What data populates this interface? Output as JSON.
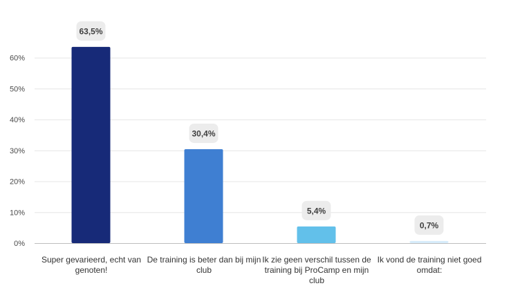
{
  "chart_data": {
    "type": "bar",
    "categories": [
      "Super gevarieerd, echt van genoten!",
      "De training is beter dan bij mijn club",
      "Ik zie geen verschil tussen de training bij ProCamp en mijn club",
      "Ik vond de training niet goed omdat:"
    ],
    "values": [
      63.5,
      30.4,
      5.4,
      0.7
    ],
    "value_labels": [
      "63,5%",
      "30,4%",
      "5,4%",
      "0,7%"
    ],
    "colors": [
      "#172a78",
      "#3f7fd2",
      "#62c0ea",
      "#d7ecfb"
    ],
    "yticks": [
      "0%",
      "10%",
      "20%",
      "30%",
      "40%",
      "50%",
      "60%"
    ],
    "ylim": [
      0,
      60
    ],
    "grid": true,
    "title": "",
    "xlabel": "",
    "ylabel": ""
  }
}
